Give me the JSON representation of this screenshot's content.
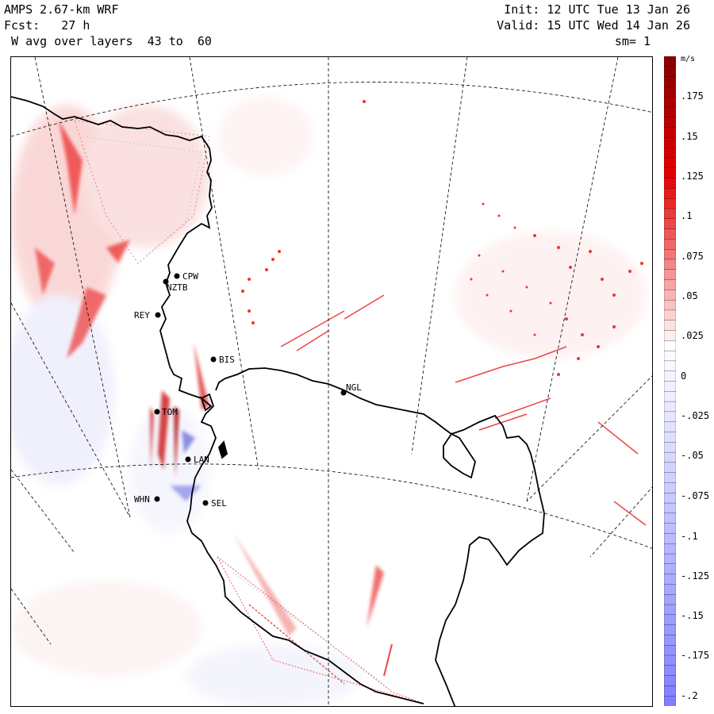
{
  "header": {
    "model": "AMPS 2.67-km WRF",
    "forecast": "Fcst:   27 h",
    "field": " W avg over layers  43 to  60",
    "init": "Init: 12 UTC Tue 13 Jan 26",
    "valid": "Valid: 15 UTC Wed 14 Jan 26",
    "smoothing": "sm= 1"
  },
  "colorbar": {
    "unit": "m/s",
    "labels": [
      ".175",
      ".15",
      ".125",
      ".1",
      ".075",
      ".05",
      ".025",
      "0",
      "-.025",
      "-.05",
      "-.075",
      "-.1",
      "-.125",
      "-.15",
      "-.175",
      "-.2"
    ],
    "max_color": "#8b0000",
    "mid_color": "#ffffff",
    "min_color": "#8080ff"
  },
  "stations": [
    {
      "code": "CPW"
    },
    {
      "code": "NZTB"
    },
    {
      "code": "REY"
    },
    {
      "code": "BIS"
    },
    {
      "code": "NGL"
    },
    {
      "code": "TOM"
    },
    {
      "code": "LAN"
    },
    {
      "code": "WHN"
    },
    {
      "code": "SEL"
    }
  ],
  "colors": {
    "positive": "#e83030",
    "negative": "#8080e0",
    "coast": "#000000",
    "grid": "#000000"
  }
}
